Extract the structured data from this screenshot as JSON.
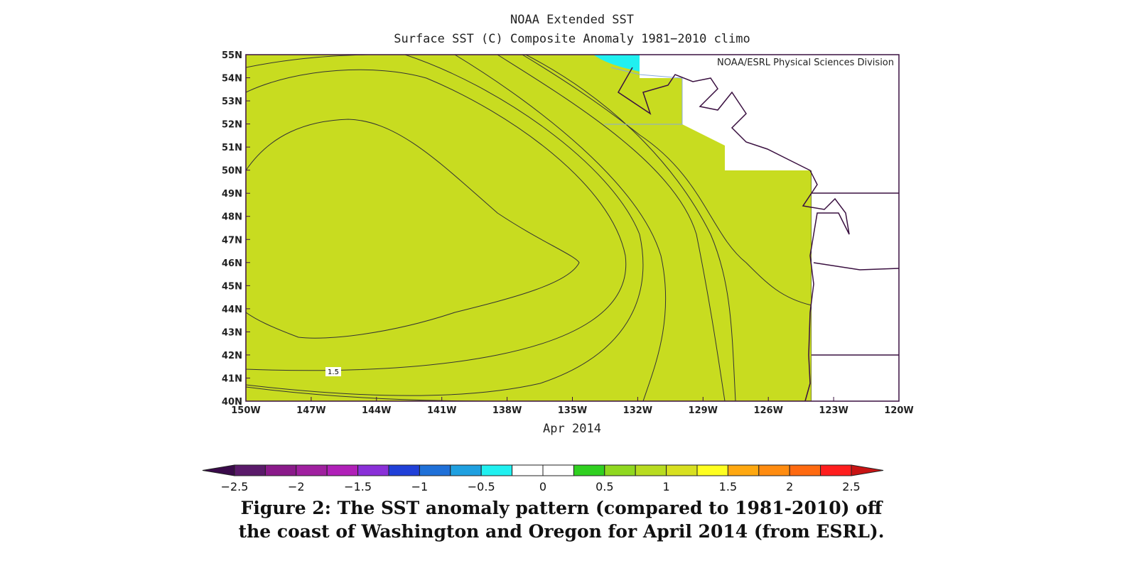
{
  "header": {
    "title": "NOAA Extended SST",
    "subtitle": "Surface SST (C) Composite Anomaly 1981−2010 climo"
  },
  "map": {
    "credit": "NOAA/ESRL Physical Sciences Division",
    "contour_label": "1.5",
    "y_labels": [
      "55N",
      "54N",
      "53N",
      "52N",
      "51N",
      "50N",
      "49N",
      "48N",
      "47N",
      "46N",
      "45N",
      "44N",
      "43N",
      "42N",
      "41N",
      "40N"
    ],
    "x_labels": [
      "150W",
      "147W",
      "144W",
      "141W",
      "138W",
      "135W",
      "132W",
      "129W",
      "126W",
      "123W",
      "120W"
    ],
    "x_title": "Apr 2014"
  },
  "colorbar": {
    "labels": [
      "−2.5",
      "−2",
      "−1.5",
      "−1",
      "−0.5",
      "0",
      "0.5",
      "1",
      "1.5",
      "2",
      "2.5"
    ]
  },
  "caption": {
    "lines": [
      "Figure 2: The SST anomaly pattern (compared to 1981-2010) off",
      "the coast of Washington and Oregon for April 2014 (from ESRL)."
    ]
  }
}
